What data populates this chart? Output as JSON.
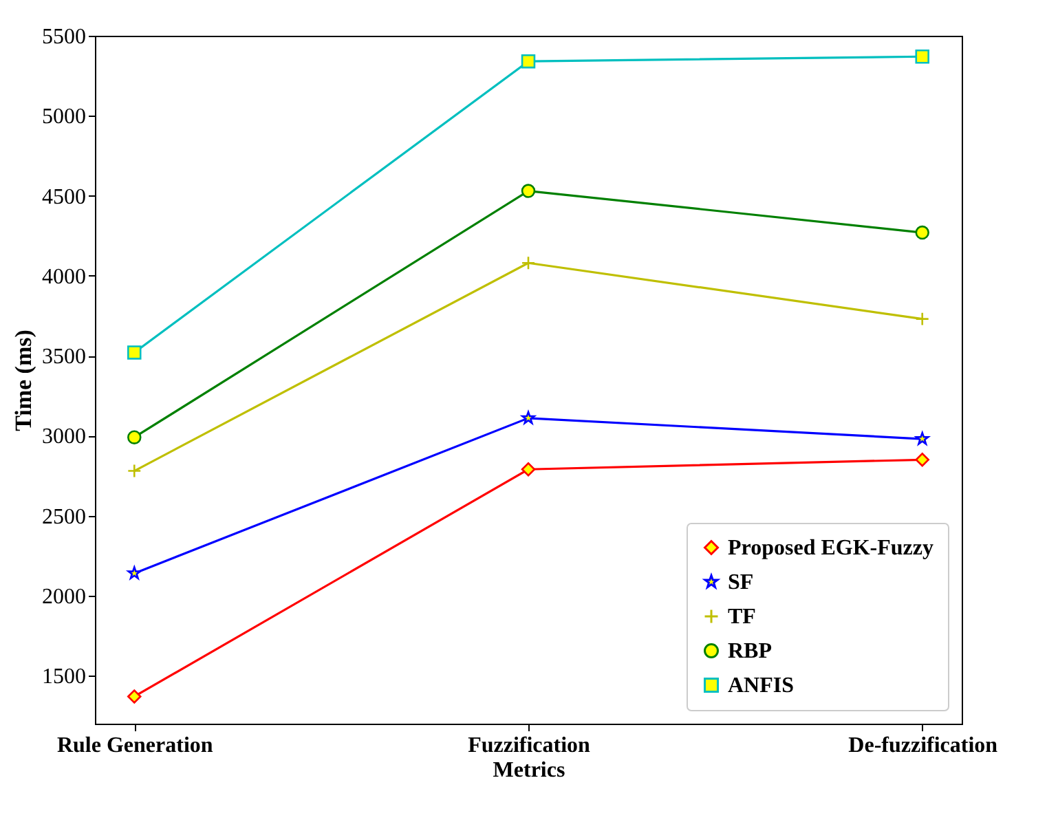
{
  "chart_data": {
    "type": "line",
    "xlabel": "Metrics",
    "ylabel": "Time (ms)",
    "categories": [
      "Rule Generation",
      "Fuzzification",
      "De-fuzzification"
    ],
    "ylim": [
      1200,
      5500
    ],
    "yticks": [
      1500,
      2000,
      2500,
      3000,
      3500,
      4000,
      4500,
      5000,
      5500
    ],
    "grid": false,
    "legend": "bottom right",
    "series": [
      {
        "name": "Proposed EGK-Fuzzy",
        "color": "#ff0000",
        "marker": "diamond",
        "values": [
          1370,
          2790,
          2850
        ]
      },
      {
        "name": "SF",
        "color": "#0000ff",
        "marker": "star",
        "values": [
          2140,
          3110,
          2980
        ]
      },
      {
        "name": "TF",
        "color": "#bfbf00",
        "marker": "cross",
        "values": [
          2780,
          4080,
          3730
        ]
      },
      {
        "name": "RBP",
        "color": "#008000",
        "marker": "circle",
        "values": [
          2990,
          4530,
          4270
        ]
      },
      {
        "name": "ANFIS",
        "color": "#00bfbf",
        "marker": "square",
        "values": [
          3520,
          5340,
          5370
        ]
      }
    ]
  }
}
